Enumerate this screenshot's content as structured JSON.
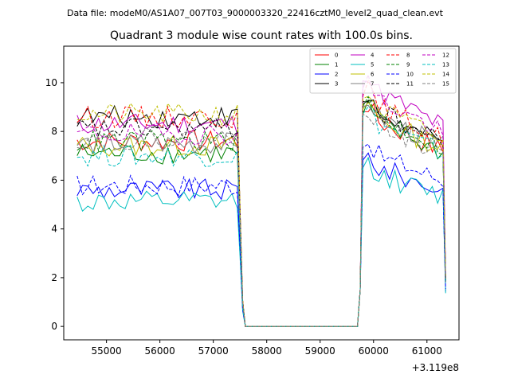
{
  "figure": {
    "suptitle": "Data file: modeM0/AS1A07_007T03_9000003320_22416cztM0_level2_quad_clean.evt"
  },
  "chart_data": {
    "type": "line",
    "title": "Quadrant 3 module wise count rates with 100.0s bins.",
    "xlabel": "",
    "ylabel": "",
    "offset_label": "+3.119e8",
    "xlim": [
      54200,
      61600
    ],
    "ylim": [
      -0.55,
      11.5
    ],
    "xticks": [
      55000,
      56000,
      57000,
      58000,
      59000,
      60000,
      61000
    ],
    "xtick_labels": [
      "55000",
      "56000",
      "57000",
      "58000",
      "59000",
      "60000",
      "61000"
    ],
    "yticks": [
      0,
      2,
      4,
      6,
      8,
      10
    ],
    "ytick_labels": [
      "0",
      "2",
      "4",
      "6",
      "8",
      "10"
    ],
    "legend_position": "top-right",
    "time": {
      "seg1_start": 54450,
      "seg1_end": 57450,
      "seg2_start": 59800,
      "seg2_end": 61300,
      "step": 100,
      "transition_down": [
        [
          57500,
          4.5
        ],
        [
          57550,
          1.0
        ],
        [
          57600,
          0.0
        ]
      ],
      "gap": [
        [
          57600,
          0.0
        ],
        [
          59700,
          0.0
        ]
      ],
      "transition_up": [
        [
          59700,
          0.0
        ],
        [
          59750,
          1.5
        ]
      ]
    },
    "series": [
      {
        "name": "0",
        "color": "#ff0000",
        "dash": "solid",
        "level1": 7.6,
        "level2": 8.4
      },
      {
        "name": "1",
        "color": "#008000",
        "dash": "solid",
        "level1": 7.1,
        "level2": 8.3
      },
      {
        "name": "2",
        "color": "#0000ff",
        "dash": "solid",
        "level1": 5.6,
        "level2": 6.5
      },
      {
        "name": "3",
        "color": "#000000",
        "dash": "solid",
        "level1": 8.6,
        "level2": 8.7
      },
      {
        "name": "4",
        "color": "#c000c0",
        "dash": "solid",
        "level1": 8.3,
        "level2": 9.6
      },
      {
        "name": "5",
        "color": "#00bfbf",
        "dash": "solid",
        "level1": 5.1,
        "level2": 6.2
      },
      {
        "name": "6",
        "color": "#bfbf00",
        "dash": "solid",
        "level1": 7.4,
        "level2": 8.5
      },
      {
        "name": "7",
        "color": "#808080",
        "dash": "solid",
        "level1": 7.5,
        "level2": 8.6
      },
      {
        "name": "8",
        "color": "#ff0000",
        "dash": "dashed",
        "level1": 8.6,
        "level2": 9.0
      },
      {
        "name": "9",
        "color": "#008000",
        "dash": "dashed",
        "level1": 7.6,
        "level2": 8.6
      },
      {
        "name": "10",
        "color": "#0000ff",
        "dash": "dashed",
        "level1": 5.8,
        "level2": 7.0
      },
      {
        "name": "11",
        "color": "#000000",
        "dash": "dashed",
        "level1": 8.1,
        "level2": 8.8
      },
      {
        "name": "12",
        "color": "#c000c0",
        "dash": "dashed",
        "level1": 7.9,
        "level2": 9.3
      },
      {
        "name": "13",
        "color": "#00bfbf",
        "dash": "dashed",
        "level1": 7.0,
        "level2": 8.3
      },
      {
        "name": "14",
        "color": "#bfbf00",
        "dash": "dashed",
        "level1": 8.7,
        "level2": 8.9
      },
      {
        "name": "15",
        "color": "#808080",
        "dash": "dashed",
        "level1": 7.7,
        "level2": 8.3
      }
    ]
  }
}
